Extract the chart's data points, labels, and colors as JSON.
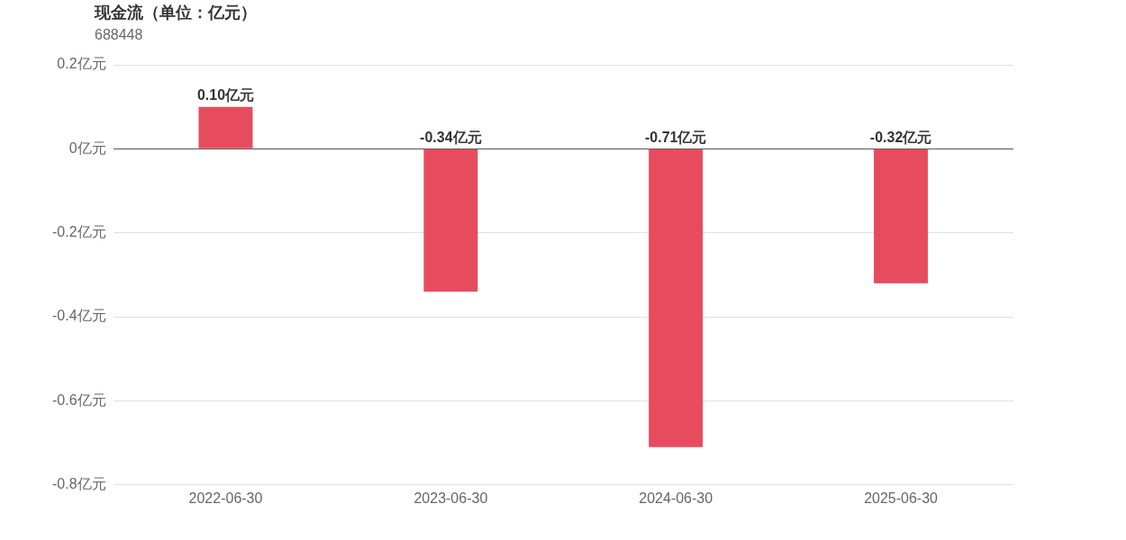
{
  "chart_data": {
    "type": "bar",
    "title": "现金流（单位：亿元）",
    "subtitle": "688448",
    "categories": [
      "2022-06-30",
      "2023-06-30",
      "2024-06-30",
      "2025-06-30"
    ],
    "values": [
      0.1,
      -0.34,
      -0.71,
      -0.32
    ],
    "color": "#e64c5e",
    "value_labels": [
      "0.10亿元",
      "-0.34亿元",
      "-0.71亿元",
      "-0.32亿元"
    ],
    "ylim": [
      -0.8,
      0.2
    ],
    "yticks": [
      {
        "value": 0.2,
        "label": "0.2亿元"
      },
      {
        "value": 0,
        "label": "0亿元"
      },
      {
        "value": -0.2,
        "label": "-0.2亿元"
      },
      {
        "value": -0.4,
        "label": "-0.4亿元"
      },
      {
        "value": -0.6,
        "label": "-0.6亿元"
      },
      {
        "value": -0.8,
        "label": "-0.8亿元"
      }
    ],
    "grid": "y",
    "legend": false
  }
}
